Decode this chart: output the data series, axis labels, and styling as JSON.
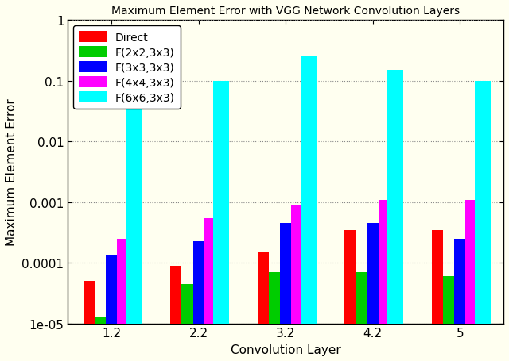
{
  "title": "Maximum Element Error with VGG Network Convolution Layers",
  "xlabel": "Convolution Layer",
  "ylabel": "Maximum Element Error",
  "categories": [
    "1.2",
    "2.2",
    "3.2",
    "4.2",
    "5"
  ],
  "series": {
    "Direct": [
      5e-05,
      9e-05,
      0.00015,
      0.00035,
      0.00035
    ],
    "F(2x2,3x3)": [
      1.3e-05,
      4.5e-05,
      7e-05,
      7e-05,
      6e-05
    ],
    "F(3x3,3x3)": [
      0.00013,
      0.00023,
      0.00045,
      0.00045,
      0.00025
    ],
    "F(4x4,3x3)": [
      0.00025,
      0.00055,
      0.0009,
      0.0011,
      0.0011
    ],
    "F(6x6,3x3)": [
      0.05,
      0.1,
      0.25,
      0.15,
      0.1
    ]
  },
  "colors": {
    "Direct": "#ff0000",
    "F(2x2,3x3)": "#00cc00",
    "F(3x3,3x3)": "#0000ff",
    "F(4x4,3x3)": "#ff00ff",
    "F(6x6,3x3)": "#00ffff"
  },
  "ylim": [
    1e-05,
    1.0
  ],
  "bg_color": "#fffff0",
  "grid_color": "#888888",
  "bar_width": 0.13,
  "cyan_bar_width": 0.18,
  "title_fontsize": 10,
  "axis_label_fontsize": 11,
  "tick_fontsize": 11,
  "legend_fontsize": 10
}
